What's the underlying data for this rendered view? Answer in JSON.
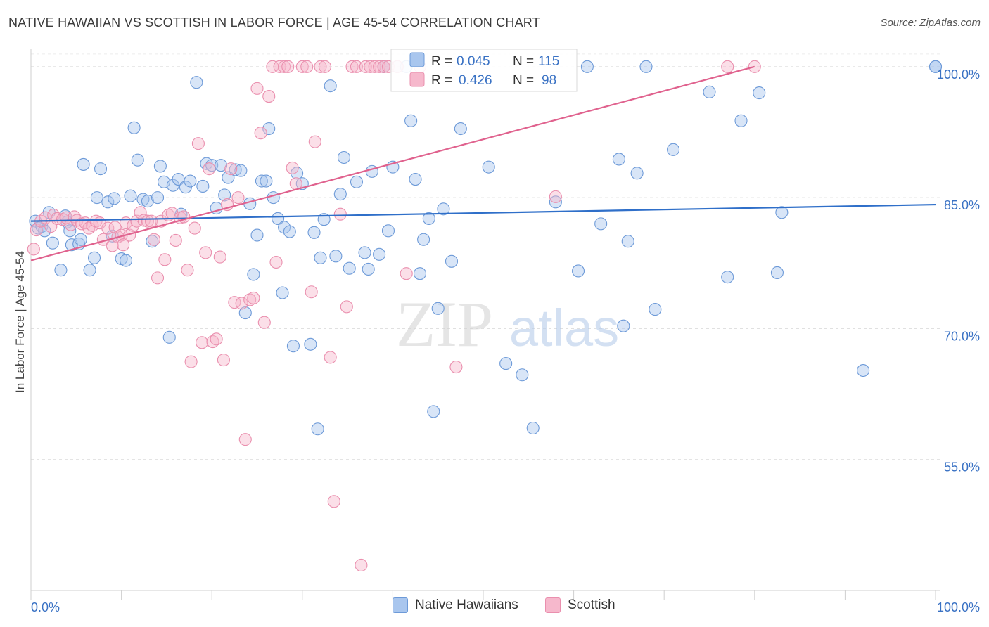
{
  "header": {
    "title": "NATIVE HAWAIIAN VS SCOTTISH IN LABOR FORCE | AGE 45-54 CORRELATION CHART",
    "source": "Source: ZipAtlas.com"
  },
  "watermark": {
    "zip": "ZIP",
    "atlas": "atlas"
  },
  "colors": {
    "blue_fill": "#a9c6ee",
    "blue_stroke": "#6d9ad8",
    "blue_line": "#2f6fc9",
    "pink_fill": "#f6b8cc",
    "pink_stroke": "#ea8fae",
    "pink_line": "#e0628e",
    "value_text": "#3a72c4"
  },
  "chart_data": {
    "type": "scatter",
    "title": "NATIVE HAWAIIAN VS SCOTTISH IN LABOR FORCE | AGE 45-54 CORRELATION CHART",
    "xlabel": "",
    "ylabel": "In Labor Force | Age 45-54",
    "xlim": [
      0,
      100
    ],
    "ylim": [
      40,
      102
    ],
    "x_tick_labels": [
      "0.0%",
      "100.0%"
    ],
    "y_ticks": [
      55,
      70,
      85,
      100
    ],
    "y_tick_labels": [
      "55.0%",
      "70.0%",
      "85.0%",
      "100.0%"
    ],
    "grid": true,
    "legend_position": "top-center",
    "stats": [
      {
        "r_label": "R =",
        "r_value": "0.045",
        "n_label": "N =",
        "n_value": "115"
      },
      {
        "r_label": "R =",
        "r_value": "0.426",
        "n_label": "N =",
        "n_value": "98"
      }
    ],
    "series": [
      {
        "name": "Native Hawaiians",
        "color": "#a9c6ee",
        "trend": {
          "x": [
            0,
            100
          ],
          "y": [
            82.3,
            84.2
          ]
        },
        "points": [
          [
            0.5,
            82.3
          ],
          [
            0.8,
            81.5
          ],
          [
            1.2,
            81.7
          ],
          [
            1.5,
            81.2
          ],
          [
            2,
            83.3
          ],
          [
            2.4,
            79.8
          ],
          [
            3.3,
            76.7
          ],
          [
            3.8,
            82.9
          ],
          [
            4,
            82.2
          ],
          [
            4.3,
            81.2
          ],
          [
            4.5,
            79.6
          ],
          [
            5.3,
            79.7
          ],
          [
            5.5,
            80.2
          ],
          [
            5.8,
            88.8
          ],
          [
            6.5,
            76.7
          ],
          [
            7,
            78.1
          ],
          [
            7.3,
            85
          ],
          [
            7.7,
            88.3
          ],
          [
            8.5,
            84.5
          ],
          [
            9,
            80.6
          ],
          [
            9.2,
            84.9
          ],
          [
            10,
            78
          ],
          [
            10.5,
            77.8
          ],
          [
            11,
            85.2
          ],
          [
            11.4,
            93
          ],
          [
            11.8,
            89.3
          ],
          [
            12.4,
            84.8
          ],
          [
            12.9,
            84.6
          ],
          [
            13.4,
            80
          ],
          [
            14,
            85
          ],
          [
            14.3,
            88.6
          ],
          [
            14.7,
            86.8
          ],
          [
            15.3,
            69
          ],
          [
            15.7,
            86.4
          ],
          [
            16.3,
            87.1
          ],
          [
            16.6,
            83.1
          ],
          [
            17.1,
            86.2
          ],
          [
            17.6,
            86.9
          ],
          [
            18.3,
            98.2
          ],
          [
            19,
            86.3
          ],
          [
            19.4,
            88.9
          ],
          [
            20,
            88.7
          ],
          [
            20.5,
            83.8
          ],
          [
            21,
            88.7
          ],
          [
            21.4,
            85.3
          ],
          [
            21.8,
            87.3
          ],
          [
            22.6,
            88.2
          ],
          [
            23.2,
            88.1
          ],
          [
            23.7,
            71.8
          ],
          [
            24.2,
            84.3
          ],
          [
            24.6,
            76.2
          ],
          [
            25,
            80.7
          ],
          [
            25.5,
            86.9
          ],
          [
            26,
            86.9
          ],
          [
            26.3,
            92.9
          ],
          [
            26.8,
            85
          ],
          [
            27.3,
            82.6
          ],
          [
            27.8,
            74.1
          ],
          [
            28,
            81.6
          ],
          [
            28.6,
            81.1
          ],
          [
            29,
            68
          ],
          [
            29.4,
            87.8
          ],
          [
            30,
            86.6
          ],
          [
            30.9,
            68.2
          ],
          [
            31.3,
            81
          ],
          [
            31.7,
            58.5
          ],
          [
            32,
            78.1
          ],
          [
            32.4,
            82.5
          ],
          [
            33.1,
            97.8
          ],
          [
            33.7,
            78.3
          ],
          [
            34.2,
            85.4
          ],
          [
            34.6,
            89.6
          ],
          [
            35.2,
            76.9
          ],
          [
            36,
            86.8
          ],
          [
            36.9,
            78.7
          ],
          [
            37.3,
            76.8
          ],
          [
            37.7,
            88
          ],
          [
            38.5,
            78.5
          ],
          [
            39,
            100
          ],
          [
            39.5,
            81.2
          ],
          [
            40,
            88.5
          ],
          [
            40.5,
            100
          ],
          [
            41.5,
            100
          ],
          [
            42,
            93.8
          ],
          [
            42.5,
            87.1
          ],
          [
            43,
            76.3
          ],
          [
            43.4,
            80.2
          ],
          [
            44,
            82.6
          ],
          [
            44.5,
            60.5
          ],
          [
            45,
            72.3
          ],
          [
            45.6,
            83.7
          ],
          [
            46.5,
            77.7
          ],
          [
            47.5,
            92.9
          ],
          [
            50.6,
            88.5
          ],
          [
            52.5,
            66
          ],
          [
            54.3,
            64.7
          ],
          [
            55.5,
            58.6
          ],
          [
            58,
            84.5
          ],
          [
            60.5,
            76.6
          ],
          [
            61.5,
            100
          ],
          [
            63,
            82
          ],
          [
            65,
            89.4
          ],
          [
            65.5,
            70.3
          ],
          [
            66,
            80
          ],
          [
            67,
            87.8
          ],
          [
            68,
            100
          ],
          [
            69,
            72.2
          ],
          [
            71,
            90.5
          ],
          [
            75,
            97.1
          ],
          [
            77,
            75.9
          ],
          [
            78.5,
            93.8
          ],
          [
            80.5,
            97
          ],
          [
            82.5,
            76.4
          ],
          [
            83,
            83.3
          ],
          [
            92,
            65.2
          ],
          [
            100,
            100
          ],
          [
            100,
            100
          ]
        ]
      },
      {
        "name": "Scottish",
        "color": "#f6b8cc",
        "trend": {
          "x": [
            0,
            80
          ],
          "y": [
            77.8,
            100
          ]
        },
        "points": [
          [
            0.3,
            79.1
          ],
          [
            0.6,
            81.3
          ],
          [
            1.1,
            82.3
          ],
          [
            1.6,
            82.7
          ],
          [
            2.2,
            81.7
          ],
          [
            2.5,
            83
          ],
          [
            2.9,
            82.6
          ],
          [
            3.5,
            82.5
          ],
          [
            3.9,
            82.7
          ],
          [
            4.4,
            81.9
          ],
          [
            4.8,
            82.8
          ],
          [
            5.1,
            82.4
          ],
          [
            5.6,
            82
          ],
          [
            6,
            82.1
          ],
          [
            6.4,
            81.5
          ],
          [
            6.8,
            81.8
          ],
          [
            7.2,
            82.3
          ],
          [
            7.6,
            82.1
          ],
          [
            8,
            80.2
          ],
          [
            8.5,
            81.5
          ],
          [
            9,
            79.5
          ],
          [
            9.3,
            81.6
          ],
          [
            9.6,
            80.5
          ],
          [
            10,
            80.7
          ],
          [
            10.2,
            79.6
          ],
          [
            10.5,
            82.1
          ],
          [
            10.9,
            80.7
          ],
          [
            11.3,
            81.8
          ],
          [
            11.7,
            82.3
          ],
          [
            12.1,
            83.3
          ],
          [
            12.5,
            82.4
          ],
          [
            12.9,
            82.3
          ],
          [
            13.3,
            82.3
          ],
          [
            13.6,
            80.2
          ],
          [
            14,
            75.8
          ],
          [
            14.4,
            82.3
          ],
          [
            14.8,
            77.9
          ],
          [
            15.2,
            83
          ],
          [
            15.6,
            83.2
          ],
          [
            16,
            80.1
          ],
          [
            16.5,
            82.7
          ],
          [
            16.9,
            82.8
          ],
          [
            17.3,
            76.7
          ],
          [
            17.7,
            66.2
          ],
          [
            18.1,
            81.5
          ],
          [
            18.5,
            91.2
          ],
          [
            18.9,
            68.4
          ],
          [
            19.3,
            78.7
          ],
          [
            19.7,
            88.3
          ],
          [
            20.1,
            68.5
          ],
          [
            20.5,
            68.8
          ],
          [
            20.9,
            78.2
          ],
          [
            21.3,
            66.4
          ],
          [
            21.7,
            84.2
          ],
          [
            22.1,
            88.3
          ],
          [
            22.5,
            73
          ],
          [
            22.9,
            85
          ],
          [
            23.3,
            72.9
          ],
          [
            23.7,
            57.3
          ],
          [
            24.2,
            73.3
          ],
          [
            24.6,
            73.5
          ],
          [
            25,
            97.5
          ],
          [
            25.4,
            92.4
          ],
          [
            25.8,
            70.7
          ],
          [
            26.3,
            96.6
          ],
          [
            26.7,
            100
          ],
          [
            27.1,
            77.6
          ],
          [
            27.5,
            100
          ],
          [
            28,
            100
          ],
          [
            28.4,
            100
          ],
          [
            28.9,
            88.4
          ],
          [
            29.3,
            86.6
          ],
          [
            30,
            100
          ],
          [
            30.5,
            100
          ],
          [
            31,
            74.2
          ],
          [
            31.4,
            91.4
          ],
          [
            32,
            100
          ],
          [
            32.5,
            100
          ],
          [
            33.1,
            66.7
          ],
          [
            33.5,
            50.2
          ],
          [
            34.2,
            83.1
          ],
          [
            34.9,
            72.5
          ],
          [
            35.5,
            100
          ],
          [
            36,
            100
          ],
          [
            36.5,
            42.9
          ],
          [
            37,
            100
          ],
          [
            37.5,
            100
          ],
          [
            38,
            100
          ],
          [
            38.5,
            100
          ],
          [
            39,
            100
          ],
          [
            39.5,
            100
          ],
          [
            40.5,
            100
          ],
          [
            41.5,
            76.3
          ],
          [
            43,
            100
          ],
          [
            47,
            65.6
          ],
          [
            58,
            85.1
          ],
          [
            77,
            100
          ],
          [
            80,
            100
          ]
        ]
      }
    ]
  },
  "bottom_legend": [
    {
      "label": "Native Hawaiians"
    },
    {
      "label": "Scottish"
    }
  ]
}
